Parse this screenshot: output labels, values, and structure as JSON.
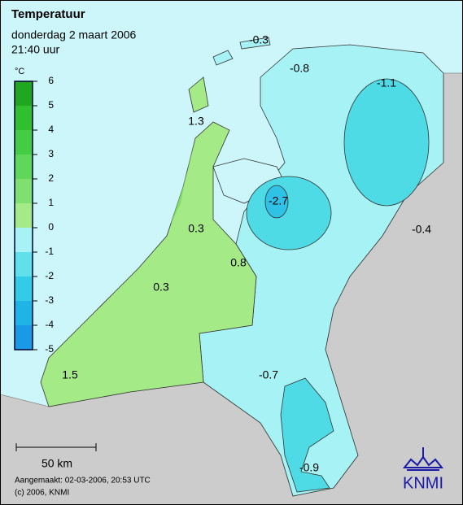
{
  "header": {
    "title": "Temperatuur",
    "date": "donderdag 2 maart 2006",
    "time": "21:40 uur"
  },
  "legend": {
    "unit": "°C",
    "ticks": [
      6,
      5,
      4,
      3,
      2,
      1,
      0,
      -1,
      -2,
      -3,
      -4,
      -5
    ]
  },
  "map_labels": [
    -0.3,
    -0.8,
    -1.1,
    1.3,
    -2.7,
    0.3,
    0.8,
    -0.4,
    0.3,
    1.5,
    -0.7,
    -0.9
  ],
  "scale": "50 km",
  "footer": {
    "created": "Aangemaakt: 02-03-2006, 20:53 UTC",
    "copyright": "(c) 2006, KNMI"
  },
  "logo": "KNMI"
}
